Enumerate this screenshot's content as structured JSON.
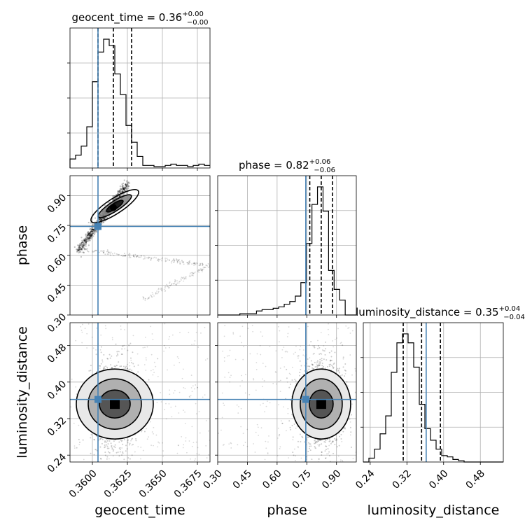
{
  "chart_data": {
    "type": "corner",
    "truth": {
      "geocent_time": 0.3604,
      "phase": 0.745,
      "luminosity_distance": 0.362
    },
    "grid": true,
    "truth_color": "#4682b4",
    "parameters": [
      {
        "name": "geocent_time",
        "label": "geocent_time",
        "range": [
          0.3584,
          0.3684
        ],
        "ticks": [
          0.36,
          0.3625,
          0.365,
          0.3675
        ],
        "tick_labels": [
          "0.3600",
          "0.3625",
          "0.3650",
          "0.3675"
        ],
        "summary": {
          "prefix": "geocent_time = ",
          "median": "0.36",
          "plus": "+0.00",
          "minus": "−0.00"
        },
        "quantiles": [
          0.3604,
          0.3615,
          0.3628
        ],
        "hist": {
          "edges_start": 0.3584,
          "bin_width": 0.0004,
          "counts": [
            0.07,
            0.1,
            0.17,
            0.32,
            0.67,
            0.9,
            1.0,
            0.95,
            0.73,
            0.57,
            0.33,
            0.2,
            0.09,
            0.02,
            0.02,
            0.01,
            0.01,
            0.02,
            0.03,
            0.02,
            0.02,
            0.01,
            0.02,
            0.03,
            0.02
          ]
        }
      },
      {
        "name": "phase",
        "label": "phase",
        "range": [
          0.3,
          1.0
        ],
        "ticks": [
          0.3,
          0.45,
          0.6,
          0.75,
          0.9
        ],
        "tick_labels": [
          "0.30",
          "0.45",
          "0.60",
          "0.75",
          "0.90"
        ],
        "summary": {
          "prefix": "phase = ",
          "median": "0.82",
          "plus": "+0.06",
          "minus": "−0.06"
        },
        "quantiles": [
          0.765,
          0.823,
          0.88
        ],
        "hist": {
          "edges_start": 0.3,
          "bin_width": 0.028,
          "counts": [
            0.0,
            0.0,
            0.0,
            0.0,
            0.01,
            0.01,
            0.01,
            0.03,
            0.04,
            0.04,
            0.05,
            0.06,
            0.08,
            0.1,
            0.14,
            0.24,
            0.53,
            0.82,
            0.95,
            0.77,
            0.33,
            0.19,
            0.11,
            0.0,
            0.0
          ]
        }
      },
      {
        "name": "luminosity_distance",
        "label": "luminosity_distance",
        "range": [
          0.225,
          0.53
        ],
        "ticks": [
          0.24,
          0.32,
          0.4,
          0.48
        ],
        "tick_labels": [
          "0.24",
          "0.32",
          "0.40",
          "0.48"
        ],
        "summary": {
          "prefix": "luminosity_distance = ",
          "median": "0.35",
          "plus": "+0.04",
          "minus": "−0.04"
        },
        "quantiles": [
          0.312,
          0.352,
          0.393
        ],
        "hist": {
          "edges_start": 0.225,
          "bin_width": 0.0122,
          "counts": [
            0.0,
            0.03,
            0.1,
            0.22,
            0.36,
            0.7,
            0.93,
            1.0,
            0.93,
            0.74,
            0.45,
            0.26,
            0.17,
            0.1,
            0.05,
            0.04,
            0.02,
            0.01,
            0.0,
            0.0,
            0.0,
            0.0,
            0.0,
            0.0,
            0.0
          ]
        }
      }
    ]
  }
}
